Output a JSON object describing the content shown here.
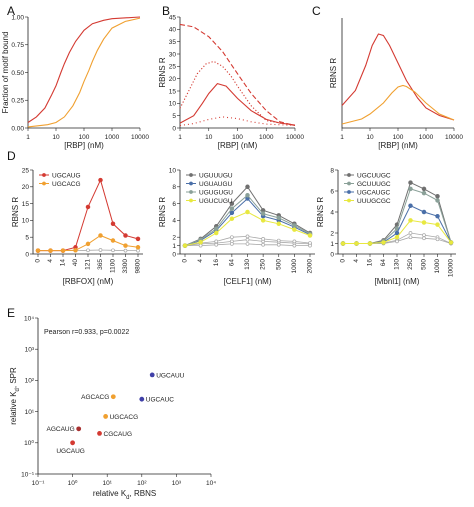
{
  "colors": {
    "red": "#d43a32",
    "orange": "#f0a030",
    "gray": "#a8a8a8",
    "dark_gray": "#707070",
    "blue": "#4a6fa8",
    "green_gray": "#8aa098",
    "yellow": "#e8e840",
    "purple": "#4040a8",
    "dark_red": "#a83030"
  },
  "chart_data": [
    {
      "id": "A",
      "panel_label": "A",
      "type": "line",
      "xscale": "log",
      "xlim": [
        1,
        10000
      ],
      "ylim": [
        0,
        1
      ],
      "xticks": [
        1,
        10,
        100,
        1000,
        10000
      ],
      "xticklabels": [
        "1",
        "10",
        "100",
        "1000",
        "10000"
      ],
      "yticks": [
        0,
        0.25,
        0.5,
        0.75,
        1
      ],
      "yticklabels": [
        "0.00",
        "0.25",
        "0.50",
        "0.75",
        "1.00"
      ],
      "xlabel": "[RBP] (nM)",
      "ylabel": "Fraction of motif bound",
      "series": [
        {
          "color": "red",
          "style": "solid",
          "x": [
            1,
            2,
            4,
            7,
            10,
            15,
            20,
            30,
            50,
            100,
            200,
            500,
            1000,
            10000
          ],
          "y": [
            0.05,
            0.1,
            0.18,
            0.3,
            0.38,
            0.5,
            0.58,
            0.68,
            0.78,
            0.88,
            0.94,
            0.97,
            0.985,
            1.0
          ]
        },
        {
          "color": "orange",
          "style": "solid",
          "x": [
            1,
            5,
            10,
            20,
            40,
            70,
            100,
            150,
            200,
            300,
            500,
            1000,
            3000,
            10000
          ],
          "y": [
            0.01,
            0.03,
            0.05,
            0.1,
            0.2,
            0.32,
            0.42,
            0.52,
            0.6,
            0.7,
            0.8,
            0.9,
            0.96,
            0.99
          ]
        }
      ]
    },
    {
      "id": "B",
      "panel_label": "B",
      "type": "line",
      "xscale": "log",
      "xlim": [
        1,
        10000
      ],
      "ylim": [
        0,
        45
      ],
      "xticks": [
        1,
        10,
        100,
        1000,
        10000
      ],
      "xticklabels": [
        "1",
        "10",
        "100",
        "1000",
        "10000"
      ],
      "yticks": [
        0,
        5,
        10,
        15,
        20,
        25,
        30,
        35,
        40,
        45
      ],
      "yticklabels": [
        "0",
        "5",
        "10",
        "15",
        "20",
        "25",
        "30",
        "35",
        "40",
        "45"
      ],
      "xlabel": "[RBP] (nM)",
      "ylabel": "RBNS R",
      "series": [
        {
          "color": "red",
          "style": "dashed",
          "x": [
            1,
            3,
            10,
            30,
            100,
            300,
            1000,
            3000,
            10000
          ],
          "y": [
            42,
            41,
            37,
            31,
            22,
            14,
            7,
            2.5,
            1
          ]
        },
        {
          "color": "red",
          "style": "dotted",
          "x": [
            1,
            2,
            4,
            8,
            15,
            30,
            60,
            100,
            300,
            1000,
            10000
          ],
          "y": [
            8,
            15,
            22,
            26,
            27,
            25,
            21,
            17,
            9,
            3,
            1
          ]
        },
        {
          "color": "red",
          "style": "solid",
          "x": [
            1,
            3,
            6,
            10,
            20,
            40,
            100,
            300,
            1000,
            3000,
            10000
          ],
          "y": [
            2,
            5,
            10,
            14,
            18,
            17,
            12,
            7,
            3.5,
            2,
            1.2
          ]
        },
        {
          "color": "red",
          "style": "sparse-dotted",
          "x": [
            1,
            3,
            10,
            30,
            100,
            300,
            1000,
            10000
          ],
          "y": [
            1,
            1.8,
            3.5,
            4.5,
            3.8,
            2.5,
            1.6,
            1
          ]
        }
      ]
    },
    {
      "id": "C",
      "panel_label": "C",
      "type": "line",
      "xscale": "log",
      "xlim": [
        1,
        10000
      ],
      "ylim": [
        0,
        22
      ],
      "xticks": [
        1,
        10,
        100,
        1000,
        10000
      ],
      "xticklabels": [
        "1",
        "10",
        "100",
        "1000",
        "10000"
      ],
      "xlabel": "[RBP] (nM)",
      "ylabel": "RBNS R",
      "series": [
        {
          "color": "red",
          "style": "solid",
          "x": [
            1,
            3,
            7,
            12,
            20,
            30,
            50,
            100,
            200,
            500,
            1000,
            3000,
            10000
          ],
          "y": [
            4.5,
            7.5,
            12.5,
            16.5,
            18.8,
            18.5,
            16.5,
            13,
            9.5,
            6,
            4,
            2.5,
            1.6
          ]
        },
        {
          "color": "orange",
          "style": "solid",
          "x": [
            1,
            5,
            10,
            30,
            60,
            100,
            150,
            200,
            400,
            1000,
            3000,
            10000
          ],
          "y": [
            0.8,
            1.8,
            2.8,
            5,
            7,
            8.2,
            8.5,
            8.3,
            7.2,
            5,
            2.8,
            1.6
          ]
        }
      ]
    },
    {
      "id": "D1",
      "panel_label": "D",
      "type": "line",
      "ylim": [
        0,
        25
      ],
      "yticks": [
        0,
        5,
        10,
        15,
        20,
        25
      ],
      "yticklabels": [
        "0",
        "5",
        "10",
        "15",
        "20",
        "25"
      ],
      "xlabel": "[RBFOX] (nM)",
      "ylabel": "RBNS R",
      "categories": [
        "0",
        "4",
        "14",
        "40",
        "121",
        "365",
        "1100",
        "3300",
        "9800"
      ],
      "legend_position": "top-left",
      "series": [
        {
          "name": "UGCAUG",
          "color": "red",
          "values": [
            1,
            1,
            1,
            2,
            14,
            22,
            9,
            5.5,
            4.5
          ]
        },
        {
          "name": "UGCACG",
          "color": "orange",
          "values": [
            1,
            1,
            1,
            1.1,
            3,
            5.5,
            4,
            2.5,
            2
          ]
        },
        {
          "color": "gray",
          "values": [
            1,
            1,
            1,
            1,
            1.1,
            1.2,
            1.1,
            1,
            1
          ]
        }
      ]
    },
    {
      "id": "D2",
      "type": "line",
      "ylim": [
        0,
        10
      ],
      "yticks": [
        0,
        1,
        2,
        4,
        6,
        8,
        10
      ],
      "yticklabels": [
        "0",
        "1",
        "2",
        "4",
        "6",
        "8",
        "10"
      ],
      "xlabel": "[CELF1] (nM)",
      "ylabel": "RBNS R",
      "categories": [
        "0",
        "4",
        "16",
        "64",
        "130",
        "250",
        "500",
        "1000",
        "2000"
      ],
      "legend_position": "top-left",
      "series": [
        {
          "name": "UGUUUGU",
          "color": "dark_gray",
          "values": [
            1,
            1.8,
            3.3,
            6,
            8,
            5.2,
            4.6,
            3.6,
            2.5
          ]
        },
        {
          "name": "UGUAUGU",
          "color": "blue",
          "values": [
            1,
            1.6,
            2.8,
            4.9,
            6.6,
            4.5,
            4,
            3.2,
            2.3
          ]
        },
        {
          "name": "UGUGUGU",
          "color": "green_gray",
          "values": [
            1,
            1.7,
            3,
            5.4,
            7,
            4.8,
            4.3,
            3.4,
            2.4
          ]
        },
        {
          "name": "UGUCUGU",
          "color": "yellow",
          "values": [
            1,
            1.4,
            2.5,
            4.2,
            5,
            4,
            3.6,
            2.9,
            2.2
          ]
        },
        {
          "color": "gray",
          "values": [
            1,
            1.2,
            1.3,
            1.5,
            1.7,
            1.5,
            1.4,
            1.3,
            1.2
          ]
        },
        {
          "color": "gray",
          "values": [
            1,
            1.3,
            1.5,
            2,
            2.1,
            1.8,
            1.6,
            1.5,
            1.3
          ]
        },
        {
          "color": "gray",
          "values": [
            1,
            1,
            1.1,
            1.2,
            1.2,
            1.1,
            1.1,
            1,
            1
          ]
        }
      ]
    },
    {
      "id": "D3",
      "type": "line",
      "ylim": [
        0,
        8
      ],
      "yticks": [
        0,
        1,
        2,
        4,
        6,
        8
      ],
      "yticklabels": [
        "0",
        "1",
        "2",
        "4",
        "6",
        "8"
      ],
      "xlabel": "[Mbnl1] (nM)",
      "ylabel": "RBNS R",
      "categories": [
        "0",
        "4",
        "16",
        "64",
        "130",
        "250",
        "500",
        "1000",
        "10000"
      ],
      "legend_position": "top-left",
      "series": [
        {
          "name": "UGCUUGC",
          "color": "dark_gray",
          "values": [
            1,
            1,
            1,
            1.3,
            2.8,
            6.8,
            6.2,
            5.5,
            1.1
          ]
        },
        {
          "name": "GCUUUGC",
          "color": "green_gray",
          "values": [
            1,
            1,
            1,
            1.2,
            2.4,
            6.2,
            5.8,
            5.1,
            1.1
          ]
        },
        {
          "name": "UGCAUGC",
          "color": "blue",
          "values": [
            1,
            1,
            1,
            1.1,
            2,
            4.6,
            4,
            3.6,
            1.1
          ]
        },
        {
          "name": "UUUGCGC",
          "color": "yellow",
          "values": [
            1,
            1,
            1,
            1.1,
            1.6,
            3.2,
            3,
            2.8,
            1.1
          ]
        },
        {
          "color": "gray",
          "values": [
            1,
            1,
            1,
            1.05,
            1.3,
            2,
            1.8,
            1.6,
            1
          ]
        },
        {
          "color": "gray",
          "values": [
            1,
            1,
            1,
            1,
            1.2,
            1.6,
            1.5,
            1.4,
            1
          ]
        }
      ]
    },
    {
      "id": "E",
      "panel_label": "E",
      "type": "scatter",
      "xscale": "log",
      "yscale": "log",
      "xlim": [
        0.1,
        10000
      ],
      "ylim": [
        0.1,
        10000
      ],
      "xticks": [
        0.1,
        1,
        10,
        100,
        1000,
        10000
      ],
      "xticklabels": [
        "10⁻¹",
        "10⁰",
        "10¹",
        "10²",
        "10³",
        "10⁴"
      ],
      "yticks": [
        0.1,
        1,
        10,
        100,
        1000,
        10000
      ],
      "yticklabels": [
        "10⁻¹",
        "10⁰",
        "10¹",
        "10²",
        "10³",
        "10⁴"
      ],
      "xlabel": "relative Kd, RBNS",
      "ylabel": "relative Kd, SPR",
      "annotation": "Pearson r=0.933, p=0.0022",
      "points": [
        {
          "label": "UGCAUG",
          "x": 1,
          "y": 1,
          "color": "red"
        },
        {
          "label": "AGCAUG",
          "x": 1.5,
          "y": 2.8,
          "color": "dark_red"
        },
        {
          "label": "CGCAUG",
          "x": 6,
          "y": 2,
          "color": "red"
        },
        {
          "label": "UGCACG",
          "x": 9,
          "y": 7,
          "color": "orange"
        },
        {
          "label": "AGCACG",
          "x": 15,
          "y": 30,
          "color": "orange"
        },
        {
          "label": "UGCAUC",
          "x": 100,
          "y": 25,
          "color": "purple"
        },
        {
          "label": "UGCAUU",
          "x": 200,
          "y": 150,
          "color": "purple"
        }
      ]
    }
  ]
}
